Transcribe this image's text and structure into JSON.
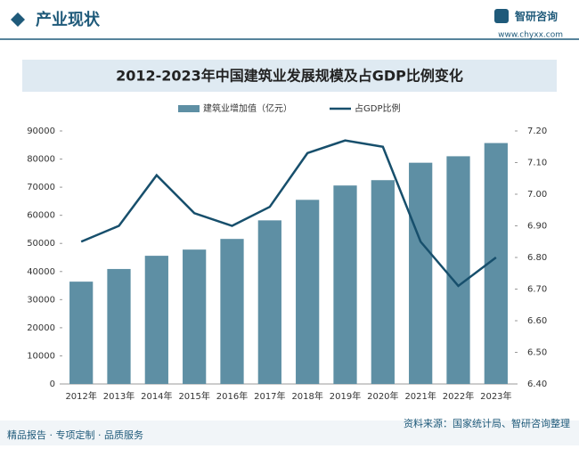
{
  "header": {
    "section": "产业现状",
    "brand": "智研咨询",
    "url": "www.chyxx.com"
  },
  "chart_data": {
    "type": "bar_line",
    "title": "2012-2023年中国建筑业发展规模及占GDP比例变化",
    "categories": [
      "2012年",
      "2013年",
      "2014年",
      "2015年",
      "2016年",
      "2017年",
      "2018年",
      "2019年",
      "2020年",
      "2021年",
      "2022年",
      "2023年"
    ],
    "series": [
      {
        "name": "建筑业增加值（亿元）",
        "type": "bar",
        "color": "#5e8fa4",
        "values": [
          36400,
          40900,
          45600,
          47800,
          51600,
          58200,
          65500,
          70600,
          72500,
          78700,
          81000,
          85700
        ]
      },
      {
        "name": "占GDP比例",
        "type": "line",
        "axis": "y2",
        "color": "#174f6c",
        "values": [
          6.85,
          6.9,
          7.06,
          6.94,
          6.9,
          6.96,
          7.13,
          7.17,
          7.15,
          6.85,
          6.71,
          6.8
        ]
      }
    ],
    "ylim": [
      0,
      90000
    ],
    "yticks": [
      0,
      10000,
      20000,
      30000,
      40000,
      50000,
      60000,
      70000,
      80000,
      90000
    ],
    "y2lim": [
      6.4,
      7.2
    ],
    "y2ticks": [
      {
        "value": 6.4,
        "label": "6.40"
      },
      {
        "value": 6.5,
        "label": "6.50"
      },
      {
        "value": 6.6,
        "label": "6.60"
      },
      {
        "value": 6.7,
        "label": "6.70"
      },
      {
        "value": 6.8,
        "label": "6.80"
      },
      {
        "value": 6.9,
        "label": "6.90"
      },
      {
        "value": 7.0,
        "label": "7.00"
      },
      {
        "value": 7.1,
        "label": "7.10"
      },
      {
        "value": 7.2,
        "label": "7.20"
      }
    ],
    "legend": "top",
    "grid": false
  },
  "footer": {
    "slogan": "精品报告 · 专项定制 · 品质服务",
    "source": "资料来源：国家统计局、智研咨询整理"
  }
}
